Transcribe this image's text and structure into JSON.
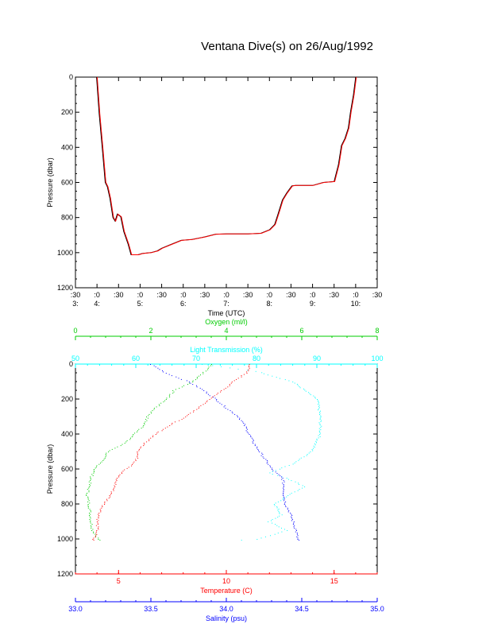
{
  "title": "Ventana Dive(s) on 26/Aug/1992",
  "colors": {
    "axis": "#000000",
    "series_black": "#000000",
    "series_red": "#ff0000",
    "oxygen": "#00cc00",
    "light": "#00ffff",
    "temperature": "#ff0000",
    "salinity": "#0000ff"
  },
  "chart_data": [
    {
      "type": "line",
      "title": "Ventana Dive(s) on 26/Aug/1992",
      "xlabel": "Time (UTC)",
      "ylabel": "Pressure (dbar)",
      "x_unit": "hours UTC",
      "xlim": [
        3.5,
        10.5
      ],
      "ylim": [
        1200,
        0
      ],
      "y_reversed": true,
      "y_ticks": [
        0,
        200,
        400,
        600,
        800,
        1000,
        1200
      ],
      "x_ticks": [
        {
          "x": 3.5,
          "line1": ":30",
          "line2": "3:"
        },
        {
          "x": 4.0,
          "line1": ":0",
          "line2": "4:"
        },
        {
          "x": 4.5,
          "line1": ":30",
          "line2": ""
        },
        {
          "x": 5.0,
          "line1": ":0",
          "line2": "5:"
        },
        {
          "x": 5.5,
          "line1": ":30",
          "line2": ""
        },
        {
          "x": 6.0,
          "line1": ":0",
          "line2": "6:"
        },
        {
          "x": 6.5,
          "line1": ":30",
          "line2": ""
        },
        {
          "x": 7.0,
          "line1": ":0",
          "line2": "7:"
        },
        {
          "x": 7.5,
          "line1": ":30",
          "line2": ""
        },
        {
          "x": 8.0,
          "line1": ":0",
          "line2": "8:"
        },
        {
          "x": 8.5,
          "line1": ":30",
          "line2": ""
        },
        {
          "x": 9.0,
          "line1": ":0",
          "line2": "9:"
        },
        {
          "x": 9.5,
          "line1": ":30",
          "line2": ""
        },
        {
          "x": 10.0,
          "line1": ":0",
          "line2": "10:"
        },
        {
          "x": 10.5,
          "line1": ":30",
          "line2": ""
        }
      ],
      "series": [
        {
          "color": "#000000",
          "points": [
            [
              3.99,
              0
            ],
            [
              4.05,
              210
            ],
            [
              4.12,
              400
            ],
            [
              4.19,
              600
            ],
            [
              4.24,
              625
            ],
            [
              4.3,
              690
            ],
            [
              4.37,
              800
            ],
            [
              4.42,
              820
            ],
            [
              4.47,
              780
            ],
            [
              4.55,
              795
            ],
            [
              4.62,
              880
            ],
            [
              4.72,
              950
            ],
            [
              4.79,
              1012
            ],
            [
              4.95,
              1012
            ],
            [
              5.05,
              1005
            ],
            [
              5.25,
              1000
            ],
            [
              5.4,
              990
            ],
            [
              5.5,
              975
            ],
            [
              5.7,
              955
            ],
            [
              5.95,
              930
            ],
            [
              6.2,
              925
            ],
            [
              6.5,
              910
            ],
            [
              6.75,
              895
            ],
            [
              7.0,
              893
            ],
            [
              7.5,
              893
            ],
            [
              7.8,
              890
            ],
            [
              8.0,
              870
            ],
            [
              8.12,
              840
            ],
            [
              8.2,
              780
            ],
            [
              8.3,
              700
            ],
            [
              8.4,
              660
            ],
            [
              8.52,
              620
            ],
            [
              8.6,
              617
            ],
            [
              9.0,
              617
            ],
            [
              9.25,
              600
            ],
            [
              9.5,
              595
            ],
            [
              9.6,
              500
            ],
            [
              9.67,
              390
            ],
            [
              9.75,
              350
            ],
            [
              9.83,
              290
            ],
            [
              9.88,
              200
            ],
            [
              9.95,
              100
            ],
            [
              10.0,
              0
            ]
          ]
        },
        {
          "color": "#ff0000",
          "points": [
            [
              3.99,
              0
            ],
            [
              4.05,
              210
            ],
            [
              4.12,
              400
            ],
            [
              4.19,
              600
            ],
            [
              4.24,
              625
            ],
            [
              4.3,
              690
            ],
            [
              4.37,
              800
            ],
            [
              4.42,
              820
            ],
            [
              4.47,
              780
            ],
            [
              4.55,
              795
            ],
            [
              4.62,
              880
            ],
            [
              4.72,
              950
            ],
            [
              4.79,
              1012
            ],
            [
              4.95,
              1012
            ],
            [
              5.05,
              1005
            ],
            [
              5.25,
              1000
            ],
            [
              5.4,
              990
            ],
            [
              5.5,
              975
            ],
            [
              5.7,
              955
            ],
            [
              5.95,
              930
            ],
            [
              6.2,
              925
            ],
            [
              6.5,
              910
            ],
            [
              6.75,
              895
            ],
            [
              7.0,
              893
            ],
            [
              7.5,
              893
            ],
            [
              7.8,
              890
            ],
            [
              8.0,
              870
            ],
            [
              8.12,
              840
            ],
            [
              8.2,
              780
            ],
            [
              8.3,
              700
            ],
            [
              8.4,
              660
            ],
            [
              8.52,
              620
            ],
            [
              8.6,
              617
            ],
            [
              9.0,
              617
            ],
            [
              9.25,
              600
            ],
            [
              9.5,
              595
            ],
            [
              9.6,
              500
            ],
            [
              9.67,
              390
            ],
            [
              9.75,
              350
            ],
            [
              9.83,
              290
            ],
            [
              9.88,
              200
            ],
            [
              9.95,
              100
            ],
            [
              10.0,
              0
            ]
          ]
        }
      ]
    },
    {
      "type": "scatter",
      "ylabel": "Pressure (dbar)",
      "ylim": [
        1200,
        0
      ],
      "y_reversed": true,
      "y_ticks": [
        0,
        200,
        400,
        600,
        800,
        1000,
        1200
      ],
      "axes": [
        {
          "label": "Oxygen (ml/l)",
          "position": "top-outer",
          "color": "#00cc00",
          "range": [
            0,
            8
          ],
          "ticks": [
            0,
            2,
            4,
            6,
            8
          ],
          "tick_labels": [
            "0",
            "2",
            "4",
            "6",
            "8"
          ]
        },
        {
          "label": "Light Transmission (%)",
          "position": "top-inner",
          "color": "#00ffff",
          "range": [
            50,
            100
          ],
          "ticks": [
            50,
            60,
            70,
            80,
            90,
            100
          ],
          "tick_labels": [
            "50",
            "60",
            "70",
            "80",
            "90",
            "100"
          ]
        },
        {
          "label": "Temperature (C)",
          "position": "bottom-inner",
          "color": "#ff0000",
          "range": [
            3,
            17
          ],
          "ticks": [
            5,
            10,
            15
          ],
          "tick_labels": [
            "5",
            "10",
            "15"
          ]
        },
        {
          "label": "Salinity (psu)",
          "position": "bottom-outer",
          "color": "#0000ff",
          "range": [
            33.0,
            35.0
          ],
          "ticks": [
            33.0,
            33.5,
            34.0,
            34.5,
            35.0
          ],
          "tick_labels": [
            "33.0",
            "33.5",
            "34.0",
            "34.5",
            "35.0"
          ]
        }
      ],
      "series": [
        {
          "axis": "Oxygen (ml/l)",
          "color": "#00cc00",
          "points": [
            [
              3.6,
              0
            ],
            [
              3.5,
              30
            ],
            [
              3.3,
              60
            ],
            [
              3.1,
              100
            ],
            [
              2.6,
              150
            ],
            [
              2.4,
              200
            ],
            [
              2.1,
              250
            ],
            [
              1.9,
              300
            ],
            [
              1.8,
              350
            ],
            [
              1.55,
              400
            ],
            [
              1.3,
              450
            ],
            [
              0.85,
              500
            ],
            [
              0.7,
              550
            ],
            [
              0.5,
              600
            ],
            [
              0.4,
              650
            ],
            [
              0.35,
              700
            ],
            [
              0.3,
              750
            ],
            [
              0.35,
              800
            ],
            [
              0.38,
              850
            ],
            [
              0.4,
              900
            ],
            [
              0.45,
              950
            ],
            [
              0.6,
              1000
            ],
            [
              0.65,
              1010
            ]
          ]
        },
        {
          "axis": "Light Transmission (%)",
          "color": "#00ffff",
          "points": [
            [
              71,
              0
            ],
            [
              80,
              40
            ],
            [
              86,
              100
            ],
            [
              90,
              200
            ],
            [
              90.5,
              300
            ],
            [
              90.5,
              400
            ],
            [
              89,
              500
            ],
            [
              86,
              570
            ],
            [
              82,
              620
            ],
            [
              85,
              650
            ],
            [
              88,
              700
            ],
            [
              85,
              750
            ],
            [
              83,
              800
            ],
            [
              84,
              860
            ],
            [
              82,
              900
            ],
            [
              85,
              950
            ],
            [
              80,
              1000
            ],
            [
              75,
              1010
            ]
          ]
        },
        {
          "axis": "Temperature (C)",
          "color": "#ff0000",
          "points": [
            [
              11.1,
              0
            ],
            [
              10.9,
              50
            ],
            [
              10.3,
              100
            ],
            [
              9.8,
              150
            ],
            [
              9.2,
              200
            ],
            [
              8.7,
              250
            ],
            [
              8.1,
              300
            ],
            [
              7.3,
              350
            ],
            [
              6.7,
              400
            ],
            [
              6.2,
              450
            ],
            [
              5.9,
              500
            ],
            [
              5.8,
              550
            ],
            [
              5.6,
              580
            ],
            [
              5.2,
              610
            ],
            [
              4.9,
              650
            ],
            [
              4.8,
              700
            ],
            [
              4.6,
              750
            ],
            [
              4.3,
              800
            ],
            [
              4.1,
              850
            ],
            [
              4.0,
              900
            ],
            [
              4.0,
              950
            ],
            [
              3.9,
              980
            ],
            [
              3.8,
              1000
            ],
            [
              3.8,
              1010
            ]
          ]
        },
        {
          "axis": "Salinity (psu)",
          "color": "#0000ff",
          "points": [
            [
              33.5,
              0
            ],
            [
              33.6,
              50
            ],
            [
              33.75,
              100
            ],
            [
              33.85,
              150
            ],
            [
              33.93,
              200
            ],
            [
              34.0,
              250
            ],
            [
              34.08,
              300
            ],
            [
              34.12,
              350
            ],
            [
              34.15,
              400
            ],
            [
              34.18,
              450
            ],
            [
              34.22,
              500
            ],
            [
              34.26,
              550
            ],
            [
              34.3,
              600
            ],
            [
              34.34,
              630
            ],
            [
              34.37,
              650
            ],
            [
              34.38,
              700
            ],
            [
              34.38,
              750
            ],
            [
              34.39,
              800
            ],
            [
              34.42,
              850
            ],
            [
              34.44,
              900
            ],
            [
              34.46,
              950
            ],
            [
              34.47,
              1000
            ],
            [
              34.48,
              1010
            ]
          ]
        }
      ]
    }
  ]
}
